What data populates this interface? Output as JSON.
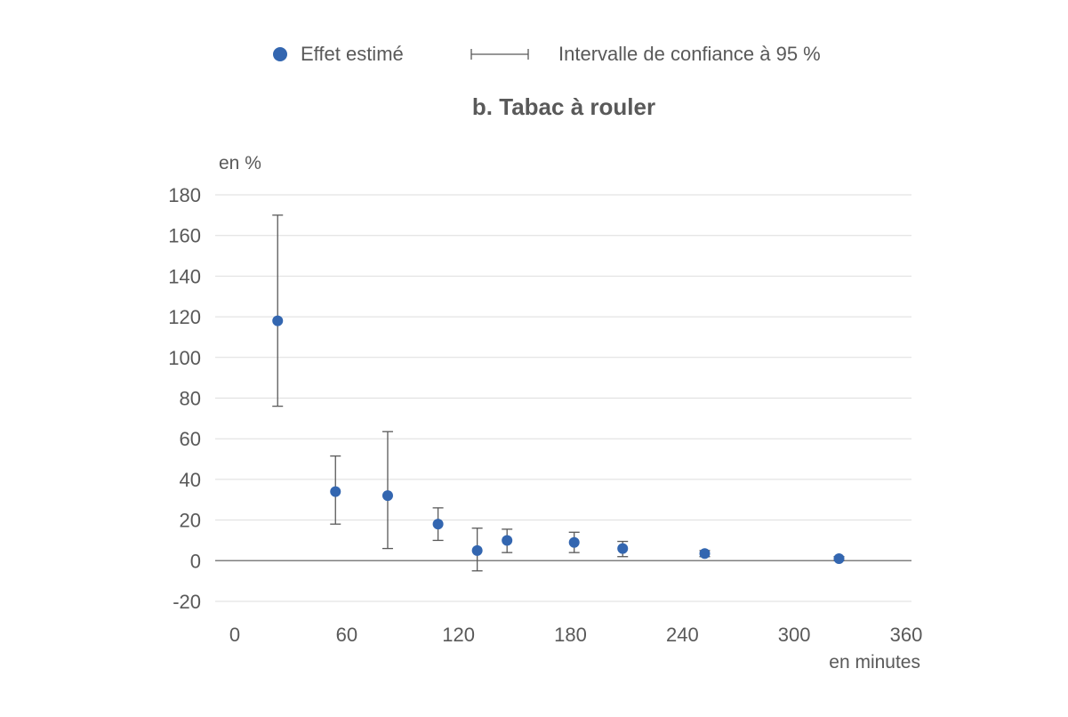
{
  "chart_data": {
    "type": "scatter",
    "title": "b. Tabac à rouler",
    "ylabel": "en %",
    "xlabel": "en minutes",
    "xlim": [
      0,
      360
    ],
    "ylim": [
      -20,
      180
    ],
    "x_ticks": [
      "0",
      "60",
      "120",
      "180",
      "240",
      "300",
      "360"
    ],
    "y_ticks": [
      "180",
      "160",
      "140",
      "120",
      "100",
      "80",
      "60",
      "40",
      "20",
      "0",
      "-20"
    ],
    "grid": true,
    "legend_position": "top",
    "legend": {
      "point_label": "Effet estimé",
      "interval_label": "Intervalle de confiance à 95 %"
    },
    "colors": {
      "point": "#3366b0",
      "error_bar": "#595959",
      "grid": "#dedede",
      "zero_line": "#7f7f7f"
    },
    "series": [
      {
        "name": "Effet estimé",
        "points": [
          {
            "x": 23,
            "y": 118,
            "lower": 76,
            "upper": 170
          },
          {
            "x": 54,
            "y": 34,
            "lower": 18,
            "upper": 51.5
          },
          {
            "x": 82,
            "y": 32,
            "lower": 6,
            "upper": 63.5
          },
          {
            "x": 109,
            "y": 18,
            "lower": 10,
            "upper": 26
          },
          {
            "x": 130,
            "y": 5,
            "lower": -5,
            "upper": 16
          },
          {
            "x": 146,
            "y": 10,
            "lower": 4,
            "upper": 15.5
          },
          {
            "x": 182,
            "y": 9,
            "lower": 4,
            "upper": 14
          },
          {
            "x": 208,
            "y": 6,
            "lower": 2,
            "upper": 9.5
          },
          {
            "x": 252,
            "y": 3.5,
            "lower": 2,
            "upper": 5
          },
          {
            "x": 324,
            "y": 1,
            "lower": 0,
            "upper": 2
          }
        ]
      }
    ]
  }
}
